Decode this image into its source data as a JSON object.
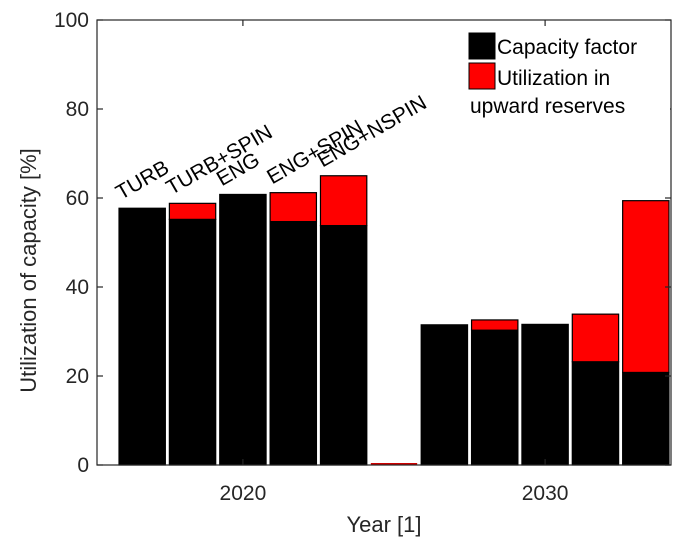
{
  "chart_data": {
    "type": "bar",
    "stacked": true,
    "xlabel": "Year [1]",
    "ylabel": "Utilization of capacity [%]",
    "ylim": [
      0,
      100
    ],
    "yticks": [
      0,
      20,
      40,
      60,
      80,
      100
    ],
    "categories": [
      "2020",
      "2030"
    ],
    "configurations": [
      "TURB",
      "TURB+SPIN",
      "ENG",
      "ENG+SPIN",
      "ENG+NSPIN"
    ],
    "series": [
      {
        "name": "Capacity factor",
        "color": "#000000",
        "values": [
          [
            57.7,
            55.2,
            60.8,
            54.7,
            53.8
          ],
          [
            31.5,
            30.3,
            31.6,
            23.2,
            20.8
          ]
        ]
      },
      {
        "name": "Utilization in upward reserves",
        "color": "#ff0000",
        "values": [
          [
            0,
            3.6,
            0,
            6.5,
            11.2
          ],
          [
            0,
            2.3,
            0,
            10.7,
            38.6
          ]
        ]
      }
    ],
    "legend": {
      "position": "top-right",
      "entries": [
        "Capacity factor",
        "Utilization in upward reserves"
      ]
    },
    "grid": false
  }
}
